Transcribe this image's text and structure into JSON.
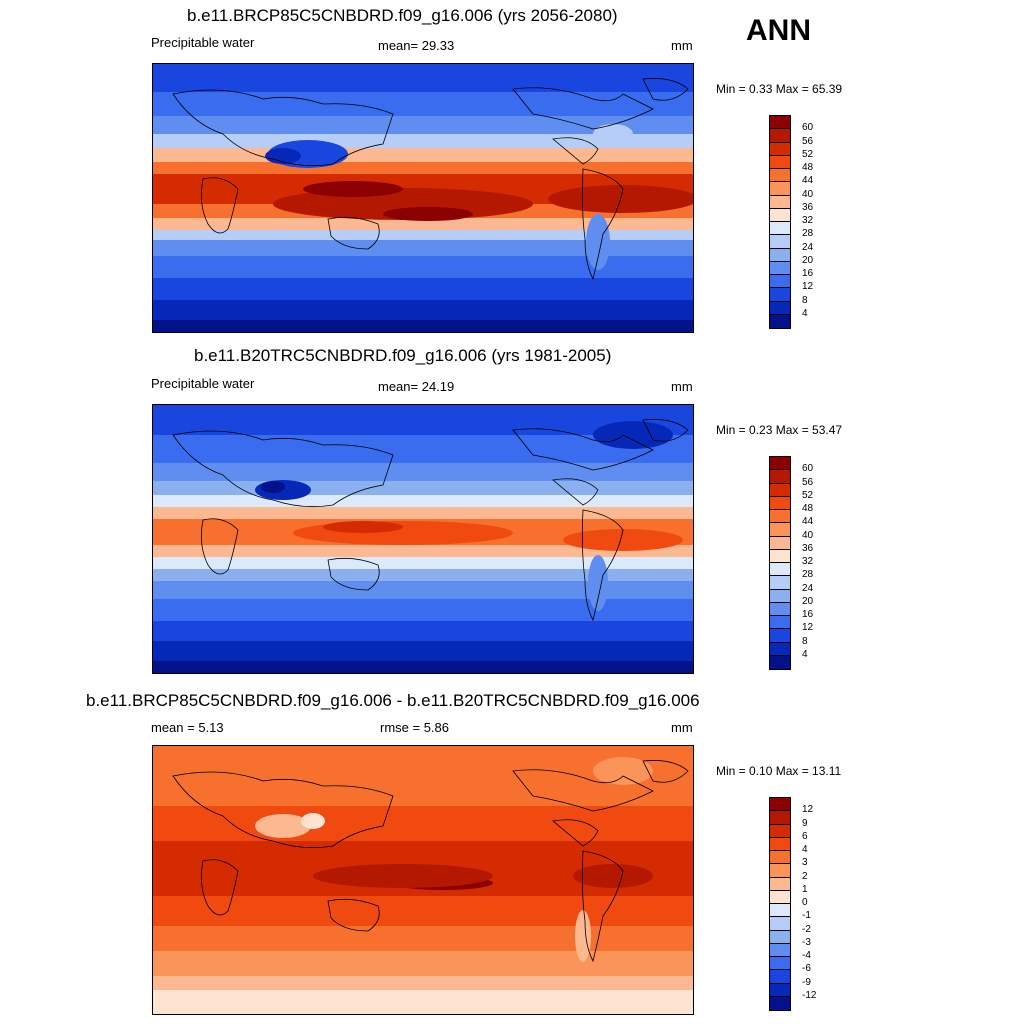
{
  "annotation": "ANN",
  "panels": [
    {
      "title": "b.e11.BRCP85C5CNBDRD.f09_g16.006 (yrs 2056-2080)",
      "left_label": "Precipitable water",
      "center_label": "mean=  29.33",
      "units": "mm",
      "minmax": "Min =   0.33 Max =  65.39",
      "colorbar_labels": [
        "60",
        "56",
        "52",
        "48",
        "44",
        "40",
        "36",
        "32",
        "28",
        "24",
        "20",
        "16",
        "12",
        "8",
        "4"
      ],
      "colorbar_colors": [
        "#8b0000",
        "#b41800",
        "#d42c00",
        "#f04a10",
        "#f7702e",
        "#fa9458",
        "#fcb890",
        "#fde3d0",
        "#dbe9fb",
        "#b5cdf7",
        "#8ab0f0",
        "#5f8ef0",
        "#3a6cf0",
        "#1a46e0",
        "#0628b8",
        "#03128a"
      ]
    },
    {
      "title": "b.e11.B20TRC5CNBDRD.f09_g16.006 (yrs 1981-2005)",
      "left_label": "Precipitable water",
      "center_label": "mean=  24.19",
      "units": "mm",
      "minmax": "Min =   0.23 Max =  53.47",
      "colorbar_labels": [
        "60",
        "56",
        "52",
        "48",
        "44",
        "40",
        "36",
        "32",
        "28",
        "24",
        "20",
        "16",
        "12",
        "8",
        "4"
      ],
      "colorbar_colors": [
        "#8b0000",
        "#b41800",
        "#d42c00",
        "#f04a10",
        "#f7702e",
        "#fa9458",
        "#fcb890",
        "#fde3d0",
        "#dbe9fb",
        "#b5cdf7",
        "#8ab0f0",
        "#5f8ef0",
        "#3a6cf0",
        "#1a46e0",
        "#0628b8",
        "#03128a"
      ]
    },
    {
      "title": "b.e11.BRCP85C5CNBDRD.f09_g16.006 - b.e11.B20TRC5CNBDRD.f09_g16.006",
      "left_label": "mean =   5.13",
      "center_label": "rmse =   5.86",
      "units": "mm",
      "minmax": "Min =  0.10 Max =  13.11",
      "colorbar_labels": [
        "12",
        "9",
        "6",
        "4",
        "3",
        "2",
        "1",
        "0",
        "-1",
        "-2",
        "-3",
        "-4",
        "-6",
        "-9",
        "-12"
      ],
      "colorbar_colors": [
        "#8b0000",
        "#b41800",
        "#d42c00",
        "#f04a10",
        "#f7702e",
        "#fa9458",
        "#fcb890",
        "#fde3d0",
        "#dbe9fb",
        "#b5cdf7",
        "#8ab0f0",
        "#5f8ef0",
        "#3a6cf0",
        "#1a46e0",
        "#0628b8",
        "#03128a"
      ]
    }
  ]
}
